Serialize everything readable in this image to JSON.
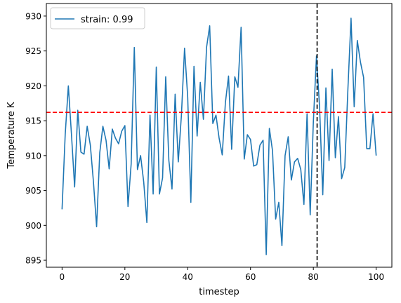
{
  "chart_data": {
    "type": "line",
    "title": "",
    "xlabel": "timestep",
    "ylabel": "Temperature K",
    "xlim": [
      -5,
      105
    ],
    "ylim": [
      894.0,
      931.8
    ],
    "xticks": [
      0,
      20,
      40,
      60,
      80,
      100
    ],
    "yticks": [
      895,
      900,
      905,
      910,
      915,
      920,
      925,
      930
    ],
    "grid": false,
    "legend_position": "top-left",
    "series": [
      {
        "name": "strain: 0.99",
        "color": "#1f77b4",
        "x": [
          0,
          1,
          2,
          3,
          4,
          5,
          6,
          7,
          8,
          9,
          10,
          11,
          12,
          13,
          14,
          15,
          16,
          17,
          18,
          19,
          20,
          21,
          22,
          23,
          24,
          25,
          26,
          27,
          28,
          29,
          30,
          31,
          32,
          33,
          34,
          35,
          36,
          37,
          38,
          39,
          40,
          41,
          42,
          43,
          44,
          45,
          46,
          47,
          48,
          49,
          50,
          51,
          52,
          53,
          54,
          55,
          56,
          57,
          58,
          59,
          60,
          61,
          62,
          63,
          64,
          65,
          66,
          67,
          68,
          69,
          70,
          71,
          72,
          73,
          74,
          75,
          76,
          77,
          78,
          79,
          80,
          81,
          82,
          83,
          84,
          85,
          86,
          87,
          88,
          89,
          90,
          91,
          92,
          93,
          94,
          95,
          96,
          97,
          98,
          99,
          100
        ],
        "y": [
          902.3,
          913.0,
          920.0,
          913.0,
          905.5,
          916.5,
          910.5,
          910.2,
          914.2,
          911.5,
          906.2,
          899.8,
          910.4,
          914.2,
          912.2,
          908.1,
          913.8,
          912.5,
          911.7,
          913.5,
          914.3,
          902.7,
          908.8,
          925.5,
          908.0,
          910.0,
          906.2,
          900.4,
          915.8,
          904.5,
          922.7,
          904.5,
          906.8,
          921.3,
          909.3,
          905.2,
          918.8,
          909.1,
          915.8,
          925.4,
          918.4,
          903.3,
          922.8,
          912.8,
          920.5,
          915.2,
          925.5,
          928.6,
          914.6,
          915.8,
          912.5,
          910.1,
          917.6,
          921.4,
          910.9,
          921.3,
          919.8,
          928.4,
          909.5,
          913.0,
          912.3,
          908.5,
          908.7,
          911.5,
          912.2,
          895.8,
          913.9,
          910.7,
          900.9,
          903.3,
          897.1,
          910.0,
          912.7,
          906.5,
          909.1,
          909.6,
          908.0,
          903.0,
          916.0,
          901.5,
          914.8,
          924.3,
          916.8,
          904.4,
          919.7,
          909.3,
          922.4,
          909.7,
          915.6,
          906.7,
          908.3,
          919.5,
          929.7,
          917.0,
          926.5,
          923.4,
          921.2,
          911.0,
          911.0,
          916.0,
          910.0
        ]
      }
    ],
    "hlines": [
      {
        "y": 916.2,
        "color": "#ff0000",
        "style": "dashed"
      }
    ],
    "vlines": [
      {
        "x": 81.2,
        "color": "#000000",
        "style": "dashed"
      }
    ]
  }
}
